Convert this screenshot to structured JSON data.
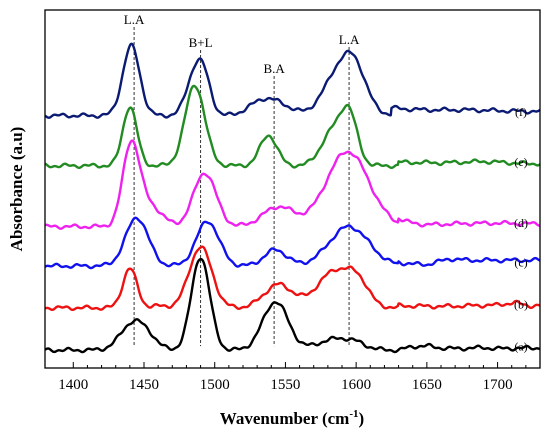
{
  "chart_data": {
    "type": "line",
    "title": "",
    "xlabel": "Wavenumber (cm",
    "xlabel_sup": "-1",
    "xlabel_close": ")",
    "ylabel": "Absorbance (a.u)",
    "xlim": [
      1380,
      1730
    ],
    "ylim": [
      0,
      1
    ],
    "xticks": [
      1400,
      1450,
      1500,
      1550,
      1600,
      1650,
      1700
    ],
    "yticks_shown": false,
    "grid": false,
    "legend": "none",
    "annotations": [
      {
        "label": "L.A",
        "x": 1443
      },
      {
        "label": "B+L",
        "x": 1490
      },
      {
        "label": "B.A",
        "x": 1542
      },
      {
        "label": "L.A",
        "x": 1595
      }
    ],
    "series": [
      {
        "name": "(a)",
        "color": "#000000",
        "baseline": 0.05,
        "tail": [
          [
            1630,
            0
          ],
          [
            1640,
            0.01
          ],
          [
            1650,
            0.012
          ],
          [
            1660,
            0.006
          ],
          [
            1670,
            0.004
          ],
          [
            1690,
            0.007
          ],
          [
            1700,
            0.004
          ],
          [
            1720,
            0.006
          ]
        ],
        "peaks": [
          [
            1443,
            0.08,
            9
          ],
          [
            1455,
            0.015,
            6
          ],
          [
            1490,
            0.26,
            6.5
          ],
          [
            1543,
            0.135,
            9
          ],
          [
            1585,
            0.03,
            12
          ],
          [
            1600,
            0.012,
            8
          ]
        ]
      },
      {
        "name": "(b)",
        "color": "#ee1111",
        "baseline": 0.168,
        "tail": [
          [
            1630,
            0.006
          ],
          [
            1660,
            0.004
          ],
          [
            1700,
            0.008
          ],
          [
            1712,
            0.015
          ],
          [
            1722,
            0.006
          ]
        ],
        "peaks": [
          [
            1440,
            0.11,
            5
          ],
          [
            1460,
            0.005,
            6
          ],
          [
            1490,
            0.17,
            8
          ],
          [
            1545,
            0.065,
            10
          ],
          [
            1586,
            0.105,
            13
          ],
          [
            1602,
            0.045,
            7
          ]
        ]
      },
      {
        "name": "(c)",
        "color": "#1111ee",
        "baseline": 0.285,
        "tail": [
          [
            1630,
            0.006
          ],
          [
            1650,
            0.004
          ],
          [
            1666,
            0.02
          ],
          [
            1680,
            0.016
          ],
          [
            1700,
            0.016
          ],
          [
            1720,
            0.016
          ]
        ],
        "peaks": [
          [
            1445,
            0.135,
            8
          ],
          [
            1495,
            0.125,
            8
          ],
          [
            1543,
            0.045,
            8
          ],
          [
            1595,
            0.11,
            14
          ]
        ]
      },
      {
        "name": "(d)",
        "color": "#ee22ee",
        "baseline": 0.395,
        "tail": [
          [
            1630,
            0.012
          ],
          [
            1650,
            0.005
          ],
          [
            1670,
            0.008
          ],
          [
            1700,
            0.01
          ],
          [
            1720,
            0.008
          ]
        ],
        "peaks": [
          [
            1441,
            0.23,
            6
          ],
          [
            1455,
            0.055,
            8
          ],
          [
            1493,
            0.15,
            8
          ],
          [
            1545,
            0.055,
            11
          ],
          [
            1594,
            0.21,
            15
          ]
        ]
      },
      {
        "name": "(e)",
        "color": "#228b22",
        "baseline": 0.565,
        "tail": [
          [
            1630,
            0.01
          ],
          [
            1660,
            0.008
          ],
          [
            1690,
            0.012
          ],
          [
            1720,
            0.006
          ]
        ],
        "peaks": [
          [
            1440,
            0.165,
            5
          ],
          [
            1486,
            0.225,
            7
          ],
          [
            1538,
            0.085,
            6
          ],
          [
            1583,
            0.09,
            8
          ],
          [
            1595,
            0.135,
            6
          ]
        ]
      },
      {
        "name": "(f)",
        "color": "#0b1a72",
        "baseline": 0.705,
        "tail": [
          [
            1625,
            0.02
          ],
          [
            1650,
            0.016
          ],
          [
            1680,
            0.016
          ],
          [
            1720,
            0.012
          ]
        ],
        "peaks": [
          [
            1441,
            0.195,
            6
          ],
          [
            1486,
            0.115,
            6
          ],
          [
            1493,
            0.075,
            5
          ],
          [
            1535,
            0.045,
            10
          ],
          [
            1550,
            0.015,
            8
          ],
          [
            1591,
            0.145,
            12
          ],
          [
            1600,
            0.05,
            7
          ]
        ]
      }
    ]
  }
}
